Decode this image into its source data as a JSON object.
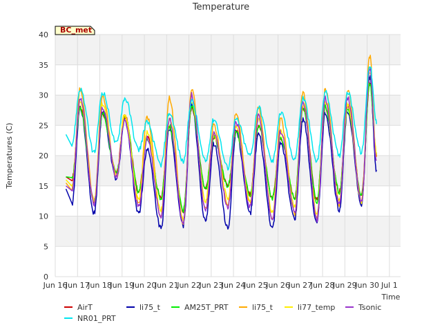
{
  "chart_data": {
    "type": "line",
    "title": "Temperature",
    "xlabel": "Time",
    "ylabel": "Temperatures (C)",
    "annotation": "BC_met",
    "x_range": [
      15.5,
      31.0
    ],
    "ylim": [
      0,
      40
    ],
    "y_ticks": [
      0,
      5,
      10,
      15,
      20,
      25,
      30,
      35,
      40
    ],
    "x_ticks": [
      {
        "value": 15.5,
        "label": "Jun 16"
      },
      {
        "value": 16.5,
        "label": "Jun 17"
      },
      {
        "value": 17.5,
        "label": "Jun 18"
      },
      {
        "value": 18.5,
        "label": "Jun 19"
      },
      {
        "value": 19.5,
        "label": "Jun 20"
      },
      {
        "value": 20.5,
        "label": "Jun 21"
      },
      {
        "value": 21.5,
        "label": "Jun 22"
      },
      {
        "value": 22.5,
        "label": "Jun 23"
      },
      {
        "value": 23.5,
        "label": "Jun 24"
      },
      {
        "value": 24.5,
        "label": "Jun 25"
      },
      {
        "value": 25.5,
        "label": "Jun 26"
      },
      {
        "value": 26.5,
        "label": "Jun 27"
      },
      {
        "value": 27.5,
        "label": "Jun 28"
      },
      {
        "value": 28.5,
        "label": "Jun 29"
      },
      {
        "value": 29.5,
        "label": "Jun 30"
      },
      {
        "value": 30.5,
        "label": "Jul 1"
      }
    ],
    "grid": true,
    "legend_position": "bottom",
    "daily_extremes": {
      "days": [
        16,
        17,
        18,
        19,
        20,
        21,
        22,
        23,
        24,
        25,
        26,
        27,
        28,
        29,
        30
      ],
      "min": [
        [
          16.0,
          12.5,
          17.0,
          14.0,
          13.0,
          11.0,
          14.5,
          15.0,
          13.5,
          13.0,
          13.0,
          12.5,
          14.0,
          13.5,
          null
        ],
        [
          12.0,
          10.5,
          16.0,
          10.5,
          8.0,
          8.5,
          9.0,
          8.0,
          10.5,
          8.0,
          9.5,
          9.0,
          11.0,
          12.0,
          null
        ],
        [
          16.0,
          12.5,
          17.0,
          14.0,
          13.0,
          11.0,
          14.5,
          15.0,
          13.5,
          13.0,
          13.0,
          12.5,
          14.0,
          13.5,
          null
        ],
        [
          14.5,
          12.5,
          16.5,
          12.0,
          10.0,
          9.0,
          11.0,
          12.0,
          12.0,
          9.5,
          10.5,
          9.5,
          12.0,
          12.5,
          null
        ],
        [
          15.0,
          12.5,
          16.5,
          12.5,
          11.0,
          9.5,
          12.5,
          13.0,
          12.5,
          10.5,
          11.5,
          10.5,
          12.5,
          12.5,
          null
        ],
        [
          14.0,
          12.0,
          16.5,
          11.5,
          10.0,
          9.0,
          11.0,
          11.5,
          11.5,
          9.5,
          10.5,
          9.5,
          12.0,
          12.5,
          null
        ],
        [
          22.0,
          20.5,
          22.0,
          21.0,
          18.5,
          19.0,
          19.0,
          18.0,
          20.0,
          19.0,
          19.5,
          19.0,
          20.0,
          20.5,
          null
        ]
      ],
      "max": [
        [
          28.0,
          27.0,
          26.5,
          23.0,
          25.0,
          28.0,
          23.0,
          24.0,
          25.0,
          23.0,
          28.0,
          28.0,
          28.0,
          32.0,
          null
        ],
        [
          28.0,
          27.0,
          26.0,
          21.0,
          24.5,
          28.5,
          22.0,
          24.0,
          23.5,
          22.0,
          26.0,
          27.0,
          27.5,
          33.0,
          null
        ],
        [
          28.0,
          27.0,
          26.5,
          23.0,
          25.0,
          28.0,
          23.0,
          24.0,
          25.0,
          23.0,
          28.0,
          28.0,
          28.0,
          32.0,
          null
        ],
        [
          31.0,
          30.0,
          26.5,
          26.5,
          29.5,
          31.0,
          25.0,
          27.0,
          28.0,
          26.0,
          30.5,
          31.0,
          31.0,
          36.5,
          null
        ],
        [
          29.0,
          28.5,
          27.0,
          24.0,
          26.0,
          29.0,
          23.5,
          25.0,
          26.0,
          24.0,
          28.5,
          29.0,
          28.5,
          34.0,
          null
        ],
        [
          29.5,
          28.0,
          26.0,
          23.0,
          26.0,
          30.0,
          24.0,
          25.5,
          26.5,
          24.0,
          29.0,
          29.5,
          29.5,
          34.5,
          null
        ],
        [
          31.0,
          30.5,
          29.5,
          25.5,
          27.0,
          29.0,
          26.0,
          26.0,
          28.0,
          27.0,
          29.5,
          30.5,
          30.5,
          35.0,
          null
        ]
      ]
    },
    "series": [
      {
        "name": "AirT",
        "color": "#cc0000"
      },
      {
        "name": "li75_t",
        "color": "#0000aa"
      },
      {
        "name": "AM25T_PRT",
        "color": "#00ee00"
      },
      {
        "name": "li75_t",
        "color": "#ffaa00"
      },
      {
        "name": "li77_temp",
        "color": "#ffee00"
      },
      {
        "name": "Tsonic",
        "color": "#9933cc"
      },
      {
        "name": "NR01_PRT",
        "color": "#00e5ee"
      }
    ]
  }
}
